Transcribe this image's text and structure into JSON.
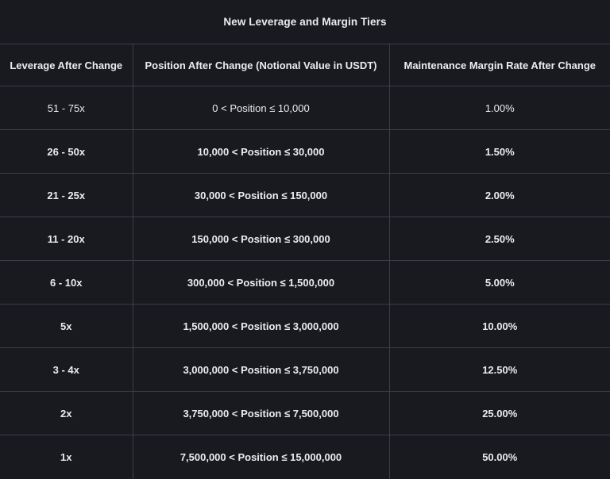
{
  "page": {
    "background_color": "#191a20",
    "border_color": "#3a3e46",
    "text_color": "#eaecef"
  },
  "title": "New Leverage and Margin Tiers",
  "table": {
    "columns": [
      "Leverage After Change",
      "Position After Change (Notional Value in USDT)",
      "Maintenance Margin Rate After Change"
    ],
    "rows": [
      {
        "leverage": "51 - 75x",
        "position": "0 < Position ≤ 10,000",
        "mmr": "1.00%",
        "bold": false
      },
      {
        "leverage": "26 - 50x",
        "position": "10,000 < Position ≤ 30,000",
        "mmr": "1.50%",
        "bold": true
      },
      {
        "leverage": "21 - 25x",
        "position": "30,000 < Position ≤ 150,000",
        "mmr": "2.00%",
        "bold": true
      },
      {
        "leverage": "11 - 20x",
        "position": "150,000 < Position ≤ 300,000",
        "mmr": "2.50%",
        "bold": true
      },
      {
        "leverage": "6 - 10x",
        "position": "300,000 < Position ≤ 1,500,000",
        "mmr": "5.00%",
        "bold": true
      },
      {
        "leverage": "5x",
        "position": "1,500,000 < Position ≤ 3,000,000",
        "mmr": "10.00%",
        "bold": true
      },
      {
        "leverage": "3 - 4x",
        "position": "3,000,000 < Position ≤ 3,750,000",
        "mmr": "12.50%",
        "bold": true
      },
      {
        "leverage": "2x",
        "position": "3,750,000 < Position ≤ 7,500,000",
        "mmr": "25.00%",
        "bold": true
      },
      {
        "leverage": "1x",
        "position": "7,500,000 < Position ≤ 15,000,000",
        "mmr": "50.00%",
        "bold": true
      }
    ]
  }
}
